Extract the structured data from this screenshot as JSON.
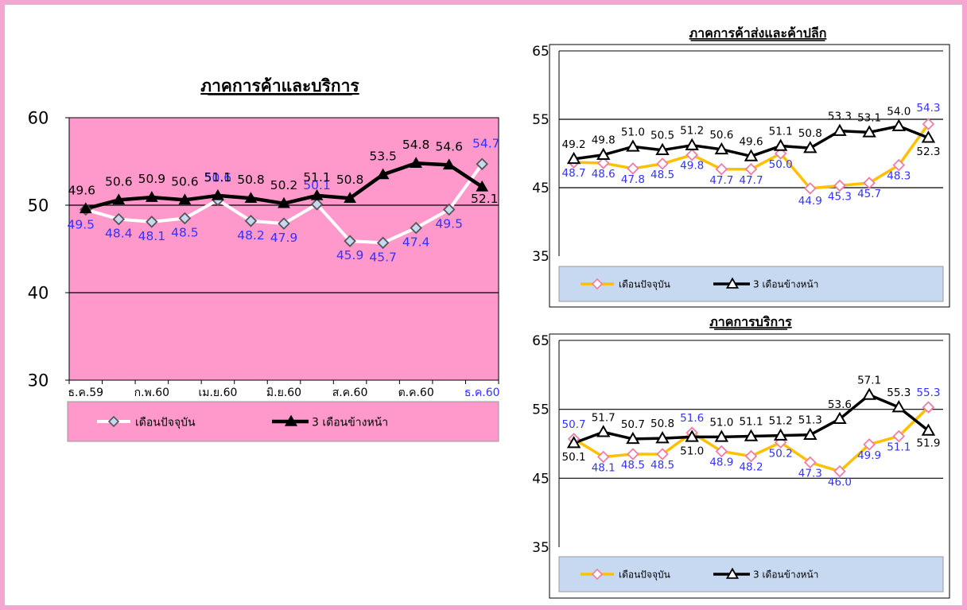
{
  "colors": {
    "frame": "#F4A6D0",
    "plot_bg_main": "#FF99CC",
    "legend_bg_right": "#C6D9F1",
    "actual_main": "#FFFFFF",
    "expect": "#000000",
    "actual_right": "#FFC000",
    "marker_pink": "#F07CA8",
    "marker_main": "#C6D9F1",
    "label_blue": "#3333FF"
  },
  "legend": {
    "actual": "เดือนปัจจุบัน",
    "expect": "3 เดือนข้างหน้า"
  },
  "chart_data": [
    {
      "type": "line",
      "title": "ภาคการค้าและบริการ",
      "ylim": [
        30,
        60
      ],
      "yticks": [
        30,
        40,
        50,
        60
      ],
      "x_tick_labels": [
        "ธ.ค.59",
        "ก.พ.60",
        "เม.ย.60",
        "มิ.ย.60",
        "ส.ค.60",
        "ต.ค.60",
        "ธ.ค.60"
      ],
      "gridlines": [
        40,
        50
      ],
      "series": [
        {
          "name": "เดือนปัจจุบัน",
          "values": [
            49.5,
            48.4,
            48.1,
            48.5,
            50.6,
            48.2,
            47.9,
            50.1,
            45.9,
            45.7,
            47.4,
            49.5,
            54.7
          ]
        },
        {
          "name": "3 เดือนข้างหน้า",
          "values": [
            49.6,
            50.6,
            50.9,
            50.6,
            51.1,
            50.8,
            50.2,
            51.1,
            50.8,
            53.5,
            54.8,
            54.6,
            52.1
          ]
        }
      ]
    },
    {
      "type": "line",
      "title": "ภาคการค้าส่งและค้าปลีก",
      "ylim": [
        35,
        65
      ],
      "yticks": [
        35,
        45,
        55,
        65
      ],
      "gridlines": [
        45,
        55
      ],
      "series": [
        {
          "name": "เดือนปัจจุบัน",
          "values": [
            48.7,
            48.6,
            47.8,
            48.5,
            49.8,
            47.7,
            47.7,
            50.0,
            44.9,
            45.3,
            45.7,
            48.3,
            54.3
          ]
        },
        {
          "name": "3 เดือนข้างหน้า",
          "values": [
            49.2,
            49.8,
            51.0,
            50.5,
            51.2,
            50.6,
            49.6,
            51.1,
            50.8,
            53.3,
            53.1,
            54.0,
            52.3
          ]
        }
      ]
    },
    {
      "type": "line",
      "title": "ภาคการบริการ",
      "ylim": [
        35,
        65
      ],
      "yticks": [
        35,
        45,
        55,
        65
      ],
      "gridlines": [
        45,
        55
      ],
      "series": [
        {
          "name": "เดือนปัจจุบัน",
          "values": [
            50.7,
            48.1,
            48.5,
            48.5,
            51.6,
            48.9,
            48.2,
            50.2,
            47.3,
            46.0,
            49.9,
            51.1,
            55.3
          ]
        },
        {
          "name": "3 เดือนข้างหน้า",
          "values": [
            50.1,
            51.7,
            50.7,
            50.8,
            51.0,
            51.0,
            51.1,
            51.2,
            51.3,
            53.6,
            57.1,
            55.3,
            51.9
          ]
        }
      ]
    }
  ]
}
